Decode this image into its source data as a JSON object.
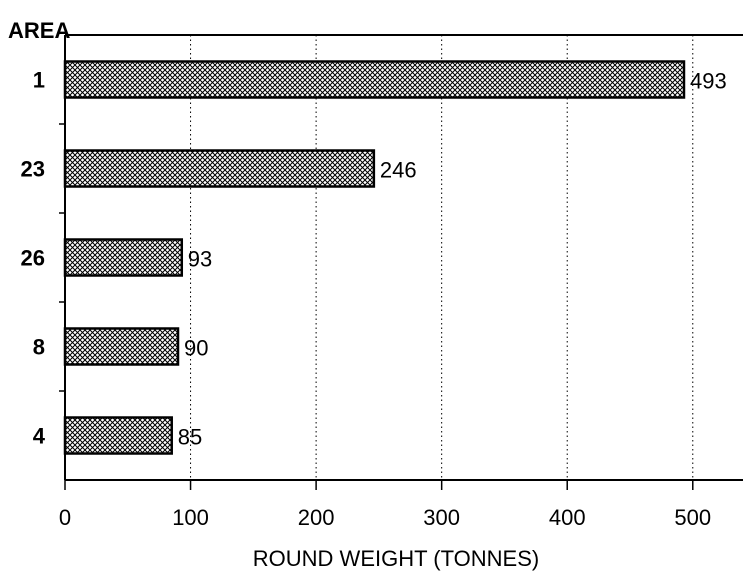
{
  "chart_data": {
    "type": "bar",
    "orientation": "horizontal",
    "title": "",
    "ylabel": "AREA",
    "xlabel": "ROUND WEIGHT (TONNES)",
    "categories": [
      "1",
      "23",
      "26",
      "8",
      "4"
    ],
    "values": [
      493,
      246,
      93,
      90,
      85
    ],
    "data_labels": [
      "493",
      "246",
      "93",
      "90",
      "85"
    ],
    "xlim": [
      0,
      540
    ],
    "xticks": [
      0,
      100,
      200,
      300,
      400,
      500
    ],
    "grid": "vertical dotted",
    "bar_fill": "crosshatch pattern",
    "colors": {
      "bar_stroke": "#000000",
      "bar_pattern": "#000000",
      "background": "#ffffff"
    }
  }
}
